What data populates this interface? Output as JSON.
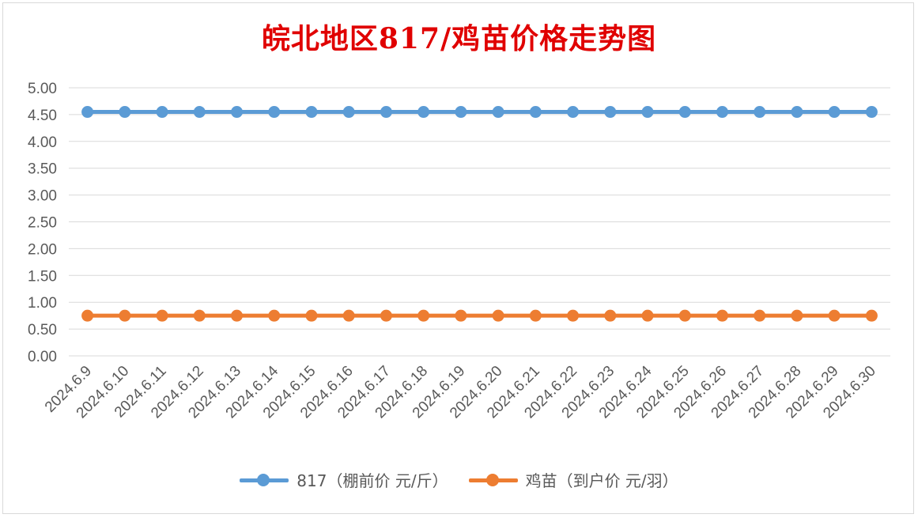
{
  "chart_data": {
    "type": "line",
    "title": "皖北地区817/鸡苗价格走势图",
    "categories": [
      "2024.6.9",
      "2024.6.10",
      "2024.6.11",
      "2024.6.12",
      "2024.6.13",
      "2024.6.14",
      "2024.6.15",
      "2024.6.16",
      "2024.6.17",
      "2024.6.18",
      "2024.6.19",
      "2024.6.20",
      "2024.6.21",
      "2024.6.22",
      "2024.6.23",
      "2024.6.24",
      "2024.6.25",
      "2024.6.26",
      "2024.6.27",
      "2024.6.28",
      "2024.6.29",
      "2024.6.30"
    ],
    "y_ticks": [
      "0.00",
      "0.50",
      "1.00",
      "1.50",
      "2.00",
      "2.50",
      "3.00",
      "3.50",
      "4.00",
      "4.50",
      "5.00"
    ],
    "ylim": [
      0,
      5
    ],
    "grid": true,
    "legend_position": "bottom",
    "series": [
      {
        "name": "817（棚前价 元/斤）",
        "color": "#5b9bd5",
        "values": [
          4.55,
          4.55,
          4.55,
          4.55,
          4.55,
          4.55,
          4.55,
          4.55,
          4.55,
          4.55,
          4.55,
          4.55,
          4.55,
          4.55,
          4.55,
          4.55,
          4.55,
          4.55,
          4.55,
          4.55,
          4.55,
          4.55
        ]
      },
      {
        "name": "鸡苗（到户价 元/羽）",
        "color": "#ed7d31",
        "values": [
          0.75,
          0.75,
          0.75,
          0.75,
          0.75,
          0.75,
          0.75,
          0.75,
          0.75,
          0.75,
          0.75,
          0.75,
          0.75,
          0.75,
          0.75,
          0.75,
          0.75,
          0.75,
          0.75,
          0.75,
          0.75,
          0.75
        ]
      }
    ]
  }
}
